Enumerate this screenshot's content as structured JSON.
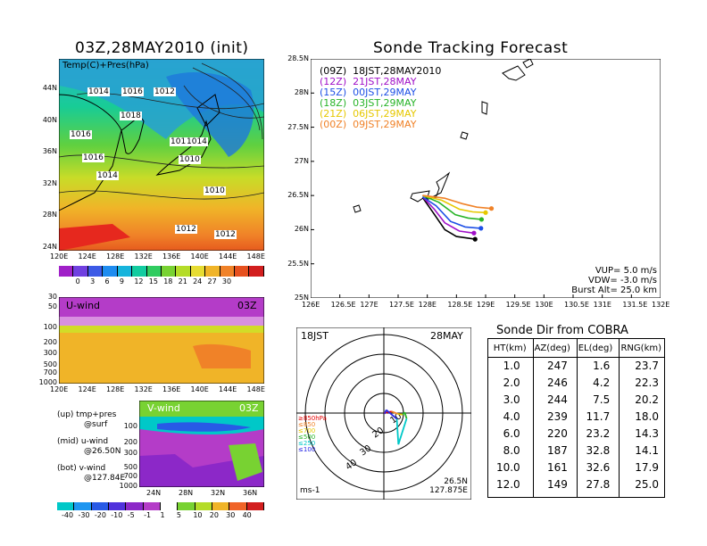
{
  "left_title": "03Z,28MAY2010 (init)",
  "right_title": "Sonde Tracking Forecast",
  "map_panel": {
    "label": "Temp(C)+Pres(hPa)",
    "pressure_labels": [
      "1014",
      "1016",
      "1016",
      "1012",
      "1018",
      "1016",
      "1016",
      "1014",
      "1010",
      "1014",
      "1010",
      "1012",
      "1012"
    ],
    "lat_ticks": [
      "44N",
      "40N",
      "36N",
      "32N",
      "28N",
      "24N"
    ],
    "lon_ticks": [
      "120E",
      "124E",
      "128E",
      "132E",
      "136E",
      "140E",
      "144E",
      "148E"
    ]
  },
  "temp_colorbar": {
    "labels": [
      "0",
      "3",
      "6",
      "9",
      "12",
      "15",
      "18",
      "21",
      "24",
      "27",
      "30"
    ],
    "colors": [
      "#a020c8",
      "#7040e0",
      "#3c5ae6",
      "#1e8cf0",
      "#16b4dc",
      "#12cca0",
      "#30cc60",
      "#78d232",
      "#b4dc28",
      "#e6dc32",
      "#f0b428",
      "#f08228",
      "#e6501e",
      "#d21e1e"
    ]
  },
  "u_panel": {
    "label": "U-wind",
    "time": "03Z",
    "p_ticks": [
      "30",
      "50",
      "100",
      "200",
      "300",
      "500",
      "700",
      "1000"
    ],
    "lon_ticks": [
      "120E",
      "124E",
      "128E",
      "132E",
      "136E",
      "140E",
      "144E",
      "148E"
    ]
  },
  "v_panel": {
    "label": "V-wind",
    "time": "03Z",
    "p_ticks": [
      "100",
      "200",
      "300",
      "500",
      "700",
      "1000"
    ],
    "lat_ticks": [
      "24N",
      "28N",
      "32N",
      "36N"
    ]
  },
  "legend_notes": {
    "l1a": "(up) tmp+pres",
    "l1b": "@surf",
    "l2a": "(mid) u-wind",
    "l2b": "@26.50N",
    "l3a": "(bot) v-wind",
    "l3b": "@127.84E"
  },
  "wind_colorbar": {
    "labels": [
      "-40",
      "-30",
      "-20",
      "-10",
      "-5",
      "-1",
      "1",
      "5",
      "10",
      "20",
      "30",
      "40"
    ],
    "colors": [
      "#00c8c8",
      "#1e96f0",
      "#285ae6",
      "#5032dc",
      "#8c28c8",
      "#b43cc8",
      "#ffffff",
      "#78d232",
      "#b4dc28",
      "#f0b428",
      "#f06428",
      "#d21e1e"
    ]
  },
  "track_panel": {
    "header": "(09Z)  18JST,28MAY2010",
    "lat_ticks": [
      "28.5N",
      "28N",
      "27.5N",
      "27N",
      "26.5N",
      "26N",
      "25.5N",
      "25N"
    ],
    "lon_ticks": [
      "126E",
      "126.5E",
      "127E",
      "127.5E",
      "128E",
      "128.5E",
      "129E",
      "129.5E",
      "130E",
      "130.5E",
      "131E",
      "131.5E",
      "132E"
    ],
    "info1": "VUP=  5.0  m/s",
    "info2": "VDW= -3.0  m/s",
    "info3": "Burst Alt=  25.0  km"
  },
  "polar_panel": {
    "time_label": "18JST",
    "date_label": "28MAY",
    "ring_labels": [
      "10",
      "20",
      "30",
      "40"
    ],
    "unit": "ms-1",
    "loc1": "26.5N",
    "loc2": "127.875E",
    "levels": [
      {
        "label": "≥850hPa",
        "color": "#e60000"
      },
      {
        "label": "≤850",
        "color": "#f08228"
      },
      {
        "label": "≤700",
        "color": "#e6c800"
      },
      {
        "label": "≤500",
        "color": "#28b428"
      },
      {
        "label": "≤250",
        "color": "#00c8c8"
      },
      {
        "label": "≤100",
        "color": "#2828e6"
      }
    ],
    "hodograph": [
      {
        "u": 0,
        "v": 0,
        "color": "#e60000"
      },
      {
        "u": 4,
        "v": 0.8,
        "color": "#e60000"
      },
      {
        "u": 7,
        "v": -0.4,
        "color": "#f08228"
      },
      {
        "u": 9.6,
        "v": -0.8,
        "color": "#e6c800"
      },
      {
        "u": 10.6,
        "v": 0.4,
        "color": "#28b428"
      },
      {
        "u": 11.6,
        "v": -2.8,
        "color": "#28b428"
      },
      {
        "u": 7.4,
        "v": -16,
        "color": "#00c8c8"
      },
      {
        "u": 6.6,
        "v": -3,
        "color": "#00c8c8"
      },
      {
        "u": 1.2,
        "v": 1.6,
        "color": "#2828e6"
      },
      {
        "u": 0.4,
        "v": -0.4,
        "color": "#2828e6"
      }
    ]
  },
  "chart_data": {
    "type": "table",
    "title": "Sonde Dir from COBRA",
    "columns": [
      "HT(km)",
      "AZ(deg)",
      "EL(deg)",
      "RNG(km)"
    ],
    "rows": [
      [
        "1.0",
        "247",
        "1.6",
        "23.7"
      ],
      [
        "2.0",
        "246",
        "4.2",
        "22.3"
      ],
      [
        "3.0",
        "244",
        "7.5",
        "20.2"
      ],
      [
        "4.0",
        "239",
        "11.7",
        "18.0"
      ],
      [
        "6.0",
        "220",
        "23.2",
        "14.3"
      ],
      [
        "8.0",
        "187",
        "32.8",
        "14.1"
      ],
      [
        "10.0",
        "161",
        "32.6",
        "17.9"
      ],
      [
        "12.0",
        "149",
        "27.8",
        "25.0"
      ]
    ],
    "tracks": [
      {
        "name": "(09Z)  18JST,28MAY2010",
        "color": "#000000",
        "points": [
          [
            127.92,
            26.47
          ],
          [
            128.1,
            26.25
          ],
          [
            128.3,
            26.0
          ],
          [
            128.5,
            25.9
          ],
          [
            128.82,
            25.86
          ]
        ]
      },
      {
        "name": "(12Z)  21JST,28MAY",
        "color": "#a010c8",
        "points": [
          [
            127.92,
            26.48
          ],
          [
            128.12,
            26.3
          ],
          [
            128.3,
            26.1
          ],
          [
            128.55,
            25.98
          ],
          [
            128.8,
            25.95
          ]
        ]
      },
      {
        "name": "(15Z)  00JST,29MAY",
        "color": "#1e50e6",
        "points": [
          [
            127.92,
            26.48
          ],
          [
            128.15,
            26.35
          ],
          [
            128.4,
            26.12
          ],
          [
            128.65,
            26.04
          ],
          [
            128.92,
            26.02
          ]
        ]
      },
      {
        "name": "(18Z)  03JST,29MAY",
        "color": "#28b428",
        "points": [
          [
            127.92,
            26.5
          ],
          [
            128.2,
            26.4
          ],
          [
            128.48,
            26.22
          ],
          [
            128.7,
            26.17
          ],
          [
            128.93,
            26.15
          ]
        ]
      },
      {
        "name": "(21Z)  06JST,29MAY",
        "color": "#e6c800",
        "points": [
          [
            127.92,
            26.5
          ],
          [
            128.25,
            26.43
          ],
          [
            128.55,
            26.3
          ],
          [
            128.78,
            26.26
          ],
          [
            129.0,
            26.25
          ]
        ]
      },
      {
        "name": "(00Z)  09JST,29MAY",
        "color": "#f08228",
        "points": [
          [
            127.92,
            26.5
          ],
          [
            128.3,
            26.46
          ],
          [
            128.6,
            26.38
          ],
          [
            128.85,
            26.33
          ],
          [
            129.1,
            26.31
          ]
        ]
      }
    ],
    "xlim": [
      126,
      132
    ],
    "ylim": [
      25,
      28.5
    ]
  }
}
